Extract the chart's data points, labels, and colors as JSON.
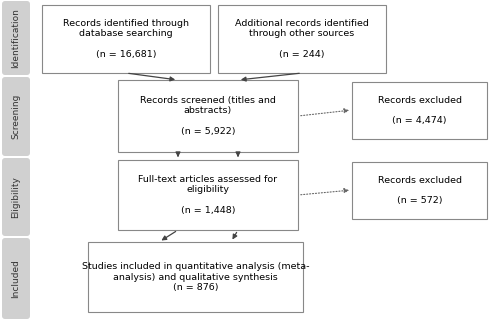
{
  "bg_color": "#ffffff",
  "sidebar_color": "#d0d0d0",
  "box_bg": "#ffffff",
  "box_edge": "#888888",
  "sidebar_labels": [
    "Identification",
    "Screening",
    "Eligibility",
    "Included"
  ],
  "text_fontsize": 6.8,
  "sidebar_fontsize": 6.5,
  "boxes": {
    "db_search": {
      "text": "Records identified through\ndatabase searching\n\n(n = 16,681)"
    },
    "other_sources": {
      "text": "Additional records identified\nthrough other sources\n\n(n = 244)"
    },
    "screened": {
      "text": "Records screened (titles and\nabstracts)\n\n(n = 5,922)"
    },
    "excluded1": {
      "text": "Records excluded\n\n(n = 4,474)"
    },
    "fulltext": {
      "text": "Full-text articles assessed for\neligibility\n\n(n = 1,448)"
    },
    "excluded2": {
      "text": "Records excluded\n\n(n = 572)"
    },
    "included": {
      "text": "Studies included in quantitative analysis (meta-\nanalysis) and qualitative synthesis\n(n = 876)"
    }
  }
}
